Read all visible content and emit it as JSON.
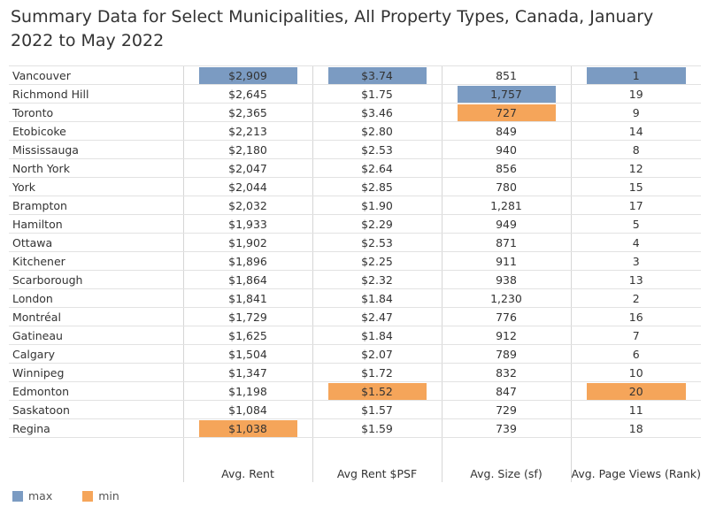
{
  "chart_data": {
    "type": "table",
    "title": "Summary Data for Select Municipalities, All Property Types, Canada, January 2022 to May 2022",
    "columns": [
      "Avg. Rent",
      "Avg Rent $PSF",
      "Avg. Size (sf)",
      "Avg. Page Views (Rank)"
    ],
    "rows": [
      {
        "city": "Vancouver",
        "cells": [
          "$2,909",
          "$3.74",
          "851",
          "1"
        ]
      },
      {
        "city": "Richmond Hill",
        "cells": [
          "$2,645",
          "$1.75",
          "1,757",
          "19"
        ]
      },
      {
        "city": "Toronto",
        "cells": [
          "$2,365",
          "$3.46",
          "727",
          "9"
        ]
      },
      {
        "city": "Etobicoke",
        "cells": [
          "$2,213",
          "$2.80",
          "849",
          "14"
        ]
      },
      {
        "city": "Mississauga",
        "cells": [
          "$2,180",
          "$2.53",
          "940",
          "8"
        ]
      },
      {
        "city": "North York",
        "cells": [
          "$2,047",
          "$2.64",
          "856",
          "12"
        ]
      },
      {
        "city": "York",
        "cells": [
          "$2,044",
          "$2.85",
          "780",
          "15"
        ]
      },
      {
        "city": "Brampton",
        "cells": [
          "$2,032",
          "$1.90",
          "1,281",
          "17"
        ]
      },
      {
        "city": "Hamilton",
        "cells": [
          "$1,933",
          "$2.29",
          "949",
          "5"
        ]
      },
      {
        "city": "Ottawa",
        "cells": [
          "$1,902",
          "$2.53",
          "871",
          "4"
        ]
      },
      {
        "city": "Kitchener",
        "cells": [
          "$1,896",
          "$2.25",
          "911",
          "3"
        ]
      },
      {
        "city": "Scarborough",
        "cells": [
          "$1,864",
          "$2.32",
          "938",
          "13"
        ]
      },
      {
        "city": "London",
        "cells": [
          "$1,841",
          "$1.84",
          "1,230",
          "2"
        ]
      },
      {
        "city": "Montréal",
        "cells": [
          "$1,729",
          "$2.47",
          "776",
          "16"
        ]
      },
      {
        "city": "Gatineau",
        "cells": [
          "$1,625",
          "$1.84",
          "912",
          "7"
        ]
      },
      {
        "city": "Calgary",
        "cells": [
          "$1,504",
          "$2.07",
          "789",
          "6"
        ]
      },
      {
        "city": "Winnipeg",
        "cells": [
          "$1,347",
          "$1.72",
          "832",
          "10"
        ]
      },
      {
        "city": "Edmonton",
        "cells": [
          "$1,198",
          "$1.52",
          "847",
          "20"
        ]
      },
      {
        "city": "Saskatoon",
        "cells": [
          "$1,084",
          "$1.57",
          "729",
          "11"
        ]
      },
      {
        "city": "Regina",
        "cells": [
          "$1,038",
          "$1.59",
          "739",
          "18"
        ]
      }
    ],
    "highlights": {
      "max": [
        [
          0,
          0
        ],
        [
          0,
          1
        ],
        [
          1,
          2
        ],
        [
          0,
          3
        ]
      ],
      "min": [
        [
          19,
          0
        ],
        [
          17,
          1
        ],
        [
          2,
          2
        ],
        [
          17,
          3
        ]
      ]
    },
    "legend": [
      {
        "key": "max",
        "label": "max",
        "color": "#7b9bc2"
      },
      {
        "key": "min",
        "label": "min",
        "color": "#f5a55a"
      }
    ]
  }
}
